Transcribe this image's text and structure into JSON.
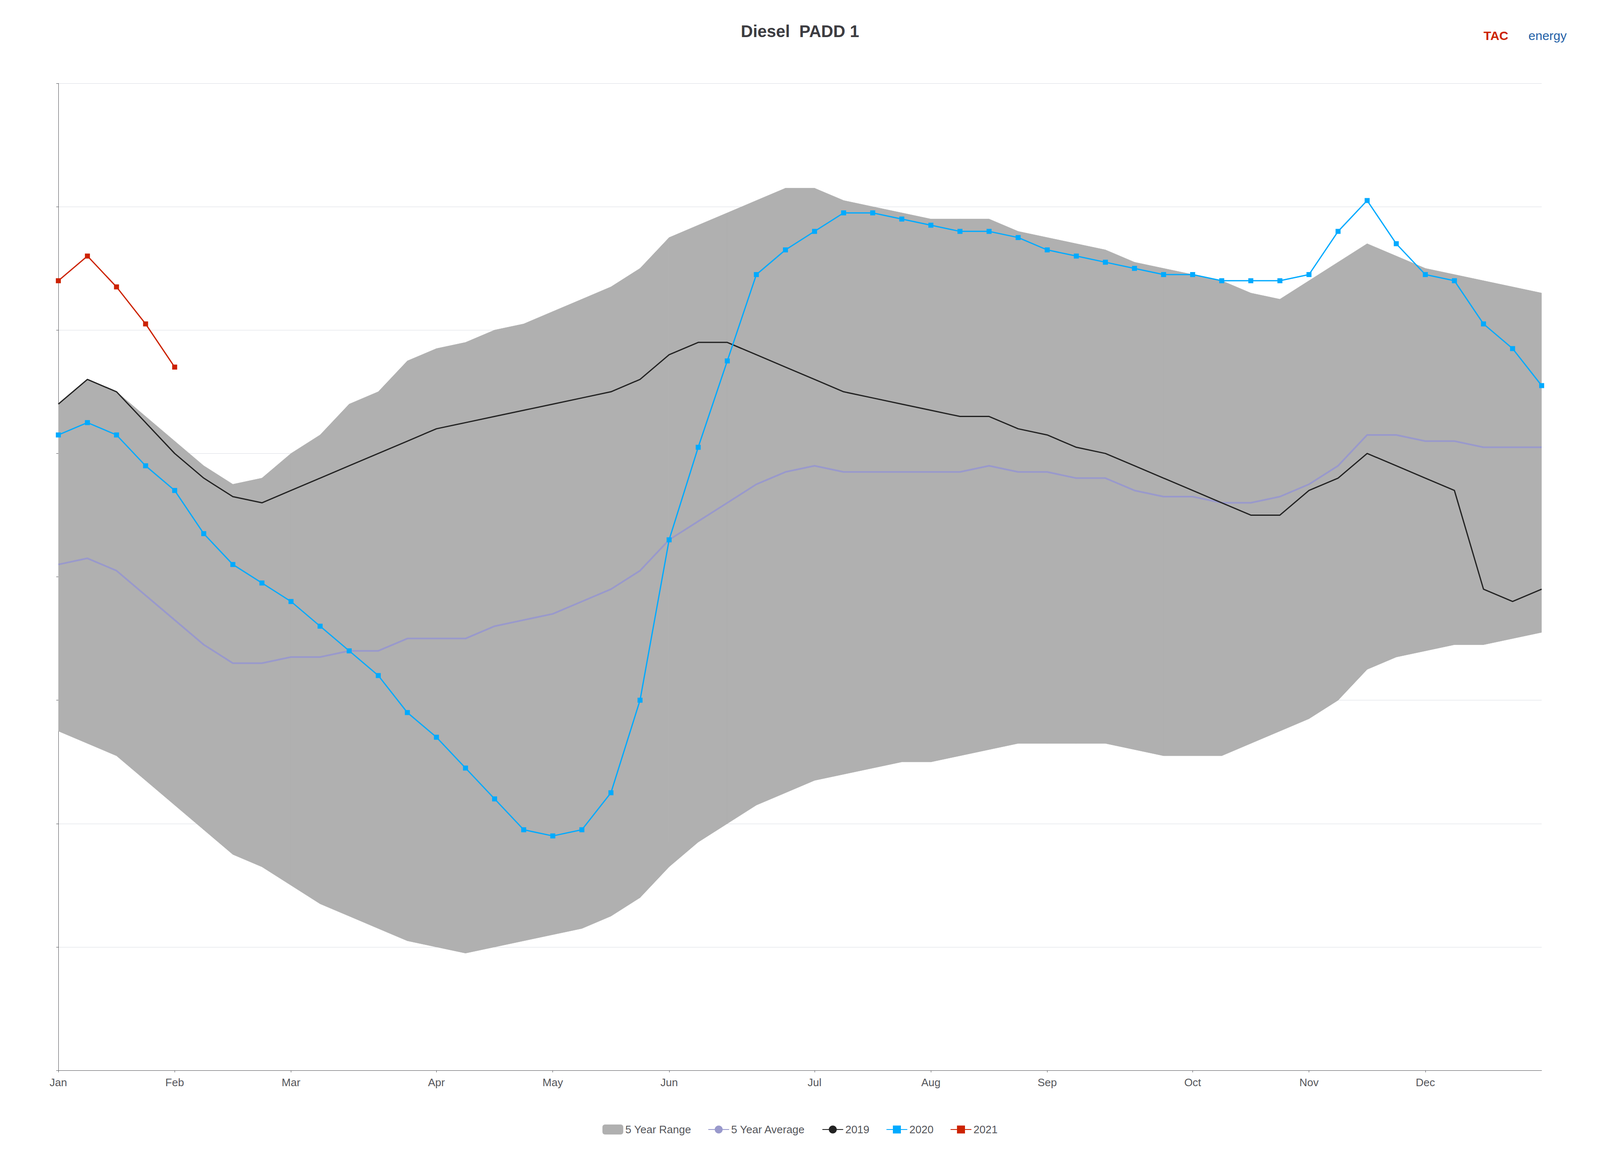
{
  "chart_data": {
    "type": "line",
    "title": "Diesel  PADD 1",
    "annotations": [
      {
        "text": "TAC",
        "color": "#cc2200"
      },
      {
        "text": "energy",
        "color": "#1f5fa6"
      }
    ],
    "categories": [
      "Jan",
      null,
      null,
      null,
      "Feb",
      null,
      null,
      null,
      "Mar",
      null,
      null,
      null,
      null,
      "Apr",
      null,
      null,
      null,
      "May",
      null,
      null,
      null,
      "Jun",
      null,
      null,
      null,
      null,
      "Jul",
      null,
      null,
      null,
      "Aug",
      null,
      null,
      null,
      "Sep",
      null,
      null,
      null,
      null,
      "Oct",
      null,
      null,
      null,
      "Nov",
      null,
      null,
      null,
      "Dec",
      null,
      null,
      null,
      null
    ],
    "series": [
      {
        "name": "5 Year Range",
        "type": "band",
        "color": "#b0b0b0",
        "lower": [
          95,
          93,
          91,
          87,
          83,
          79,
          75,
          73,
          70,
          67,
          65,
          63,
          61,
          60,
          59,
          60,
          61,
          62,
          63,
          65,
          68,
          73,
          77,
          80,
          83,
          85,
          87,
          88,
          89,
          90,
          90,
          91,
          92,
          93,
          93,
          93,
          93,
          92,
          91,
          91,
          91,
          93,
          95,
          97,
          100,
          105,
          107,
          108,
          109,
          109,
          110,
          111
        ],
        "upper": [
          148,
          152,
          150,
          146,
          142,
          138,
          135,
          136,
          140,
          143,
          148,
          150,
          155,
          157,
          158,
          160,
          161,
          163,
          165,
          167,
          170,
          175,
          177,
          179,
          181,
          183,
          183,
          181,
          180,
          179,
          178,
          178,
          178,
          176,
          175,
          174,
          173,
          171,
          170,
          169,
          168,
          166,
          165,
          168,
          171,
          174,
          172,
          170,
          169,
          168,
          167,
          166
        ]
      },
      {
        "name": "5 Year Average",
        "type": "line",
        "color": "#9999cc",
        "values": [
          122,
          123,
          121,
          117,
          113,
          109,
          106,
          106,
          107,
          107,
          108,
          108,
          110,
          110,
          110,
          112,
          113,
          114,
          116,
          118,
          121,
          126,
          129,
          132,
          135,
          137,
          138,
          137,
          137,
          137,
          137,
          137,
          138,
          137,
          137,
          136,
          136,
          134,
          133,
          133,
          132,
          132,
          133,
          135,
          138,
          143,
          143,
          142,
          142,
          141,
          141,
          141
        ]
      },
      {
        "name": "2019",
        "type": "line",
        "color": "#222222",
        "values": [
          148,
          152,
          150,
          145,
          140,
          136,
          133,
          132,
          134,
          136,
          138,
          140,
          142,
          144,
          145,
          146,
          147,
          148,
          149,
          150,
          152,
          156,
          158,
          158,
          156,
          154,
          152,
          150,
          149,
          148,
          147,
          146,
          146,
          144,
          143,
          141,
          140,
          138,
          136,
          134,
          132,
          130,
          130,
          134,
          136,
          140,
          138,
          136,
          134,
          118,
          116,
          118
        ]
      },
      {
        "name": "2020",
        "type": "line",
        "color": "#00aaff",
        "marker": "square",
        "values": [
          143,
          145,
          143,
          138,
          134,
          127,
          122,
          119,
          116,
          112,
          108,
          104,
          98,
          94,
          89,
          84,
          79,
          78,
          79,
          85,
          100,
          126,
          141,
          155,
          169,
          173,
          176,
          179,
          179,
          178,
          177,
          176,
          176,
          175,
          173,
          172,
          171,
          170,
          169,
          169,
          168,
          168,
          168,
          169,
          176,
          181,
          174,
          169,
          168,
          161,
          157,
          151
        ]
      },
      {
        "name": "2021",
        "type": "line",
        "color": "#cc2200",
        "marker": "square",
        "values": [
          168,
          172,
          167,
          161,
          154,
          null,
          null,
          null,
          null,
          null,
          null,
          null,
          null,
          null,
          null,
          null,
          null,
          null,
          null,
          null,
          null,
          null,
          null,
          null,
          null,
          null,
          null,
          null,
          null,
          null,
          null,
          null,
          null,
          null,
          null,
          null,
          null,
          null,
          null,
          null,
          null,
          null,
          null,
          null,
          null,
          null,
          null,
          null,
          null,
          null,
          null,
          null
        ]
      }
    ],
    "ylim": [
      40,
      200
    ],
    "yticks": [
      40,
      60,
      80,
      100,
      120,
      140,
      160,
      180,
      200
    ],
    "grid": true,
    "legend": "bottom",
    "tick_labels": "x"
  }
}
